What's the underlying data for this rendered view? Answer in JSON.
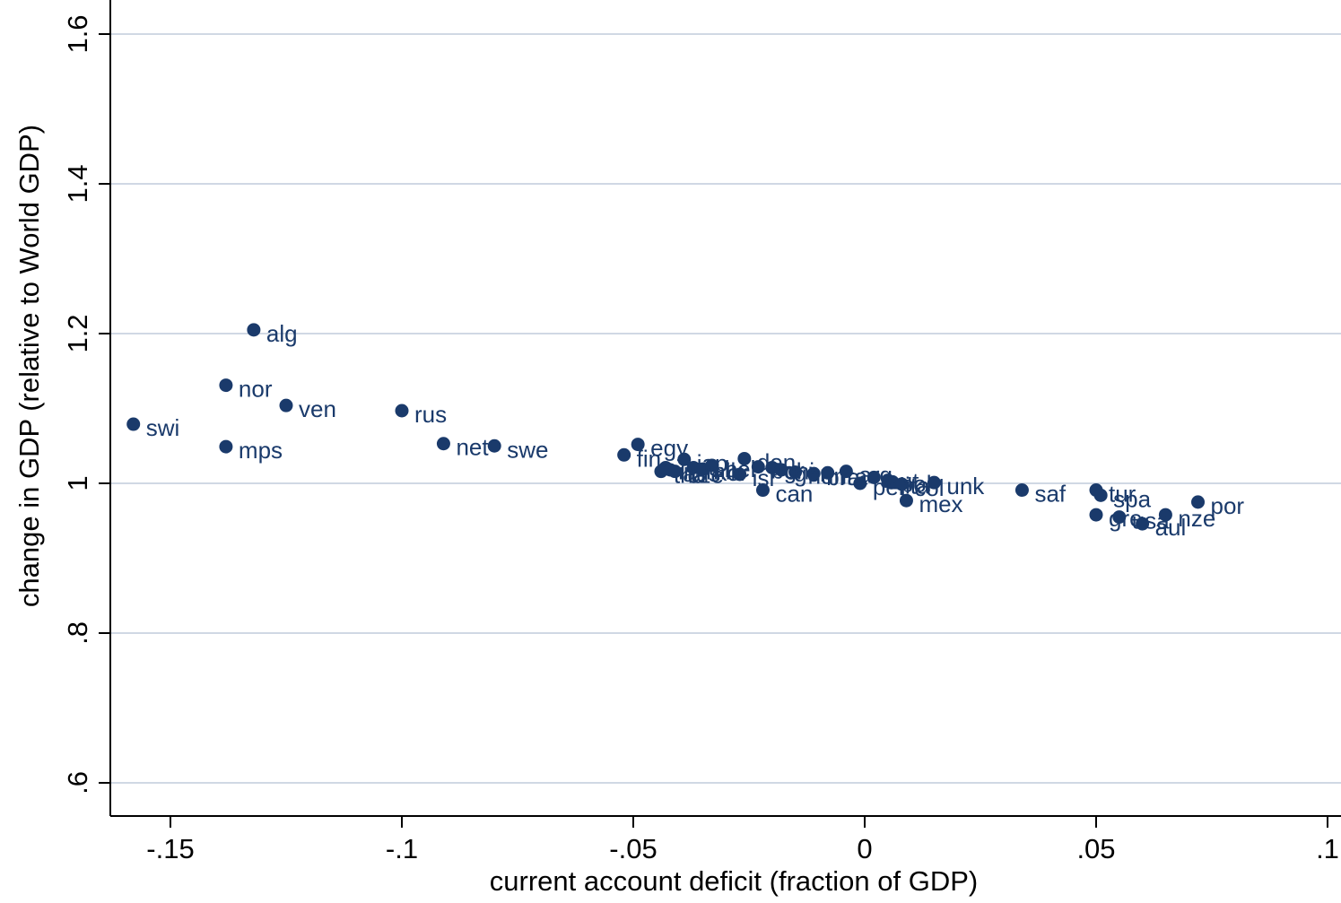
{
  "chart_data": {
    "type": "scatter",
    "title": "",
    "xlabel": "current account deficit (fraction of GDP)",
    "ylabel": "change in GDP (relative to World GDP)",
    "xlim": [
      -0.165,
      0.1
    ],
    "ylim": [
      0.58,
      1.62
    ],
    "xticks": [
      -0.15,
      -0.1,
      -0.05,
      0,
      0.05,
      0.1
    ],
    "xtick_labels": [
      "-.15",
      "-.1",
      "-.05",
      "0",
      ".05",
      ".1"
    ],
    "yticks": [
      0.6,
      0.8,
      1.0,
      1.2,
      1.4,
      1.6
    ],
    "ytick_labels": [
      ".6",
      ".8",
      "1",
      "1.2",
      "1.4",
      "1.6"
    ],
    "grid": true,
    "colors": {
      "marker": "#1a3a6b",
      "grid": "#d0d8e4",
      "axis": "#000000"
    },
    "points": [
      {
        "label": "swi",
        "x": -0.158,
        "y": 1.079
      },
      {
        "label": "alg",
        "x": -0.132,
        "y": 1.205
      },
      {
        "label": "nor",
        "x": -0.138,
        "y": 1.131
      },
      {
        "label": "ven",
        "x": -0.125,
        "y": 1.104
      },
      {
        "label": "mps",
        "x": -0.138,
        "y": 1.049
      },
      {
        "label": "rus",
        "x": -0.1,
        "y": 1.097
      },
      {
        "label": "net",
        "x": -0.091,
        "y": 1.053
      },
      {
        "label": "swe",
        "x": -0.08,
        "y": 1.05
      },
      {
        "label": "fin",
        "x": -0.052,
        "y": 1.038
      },
      {
        "label": "egy",
        "x": -0.049,
        "y": 1.052
      },
      {
        "label": "jap",
        "x": -0.039,
        "y": 1.032
      },
      {
        "label": "den",
        "x": -0.026,
        "y": 1.033
      },
      {
        "label": "tha",
        "x": -0.044,
        "y": 1.016
      },
      {
        "label": "irl",
        "x": -0.043,
        "y": 1.021
      },
      {
        "label": "aus",
        "x": -0.042,
        "y": 1.018
      },
      {
        "label": "cze",
        "x": -0.041,
        "y": 1.016
      },
      {
        "label": "mlk",
        "x": -0.037,
        "y": 1.021
      },
      {
        "label": "kor",
        "x": -0.035,
        "y": 1.019
      },
      {
        "label": "bel",
        "x": -0.033,
        "y": 1.024
      },
      {
        "label": "isr",
        "x": -0.027,
        "y": 1.012
      },
      {
        "label": "can",
        "x": -0.022,
        "y": 0.991
      },
      {
        "label": "bgr",
        "x": -0.023,
        "y": 1.022
      },
      {
        "label": "chi",
        "x": -0.02,
        "y": 1.021
      },
      {
        "label": "ger",
        "x": -0.018,
        "y": 1.018
      },
      {
        "label": "hun",
        "x": -0.015,
        "y": 1.015
      },
      {
        "label": "bra",
        "x": -0.011,
        "y": 1.013
      },
      {
        "label": "fra",
        "x": -0.008,
        "y": 1.014
      },
      {
        "label": "arg",
        "x": -0.004,
        "y": 1.016
      },
      {
        "label": "per",
        "x": -0.001,
        "y": 1.0
      },
      {
        "label": "aut",
        "x": 0.002,
        "y": 1.008
      },
      {
        "label": "pol",
        "x": 0.005,
        "y": 1.004
      },
      {
        "label": "ita",
        "x": 0.006,
        "y": 1.002
      },
      {
        "label": "col",
        "x": 0.008,
        "y": 0.999
      },
      {
        "label": "mex",
        "x": 0.009,
        "y": 0.977
      },
      {
        "label": "unk",
        "x": 0.015,
        "y": 1.001
      },
      {
        "label": "saf",
        "x": 0.034,
        "y": 0.991
      },
      {
        "label": "tur",
        "x": 0.05,
        "y": 0.991
      },
      {
        "label": "spa",
        "x": 0.051,
        "y": 0.984
      },
      {
        "label": "gre",
        "x": 0.05,
        "y": 0.958
      },
      {
        "label": "usa",
        "x": 0.055,
        "y": 0.955
      },
      {
        "label": "aul",
        "x": 0.06,
        "y": 0.946
      },
      {
        "label": "nze",
        "x": 0.065,
        "y": 0.958
      },
      {
        "label": "por",
        "x": 0.072,
        "y": 0.975
      }
    ]
  }
}
